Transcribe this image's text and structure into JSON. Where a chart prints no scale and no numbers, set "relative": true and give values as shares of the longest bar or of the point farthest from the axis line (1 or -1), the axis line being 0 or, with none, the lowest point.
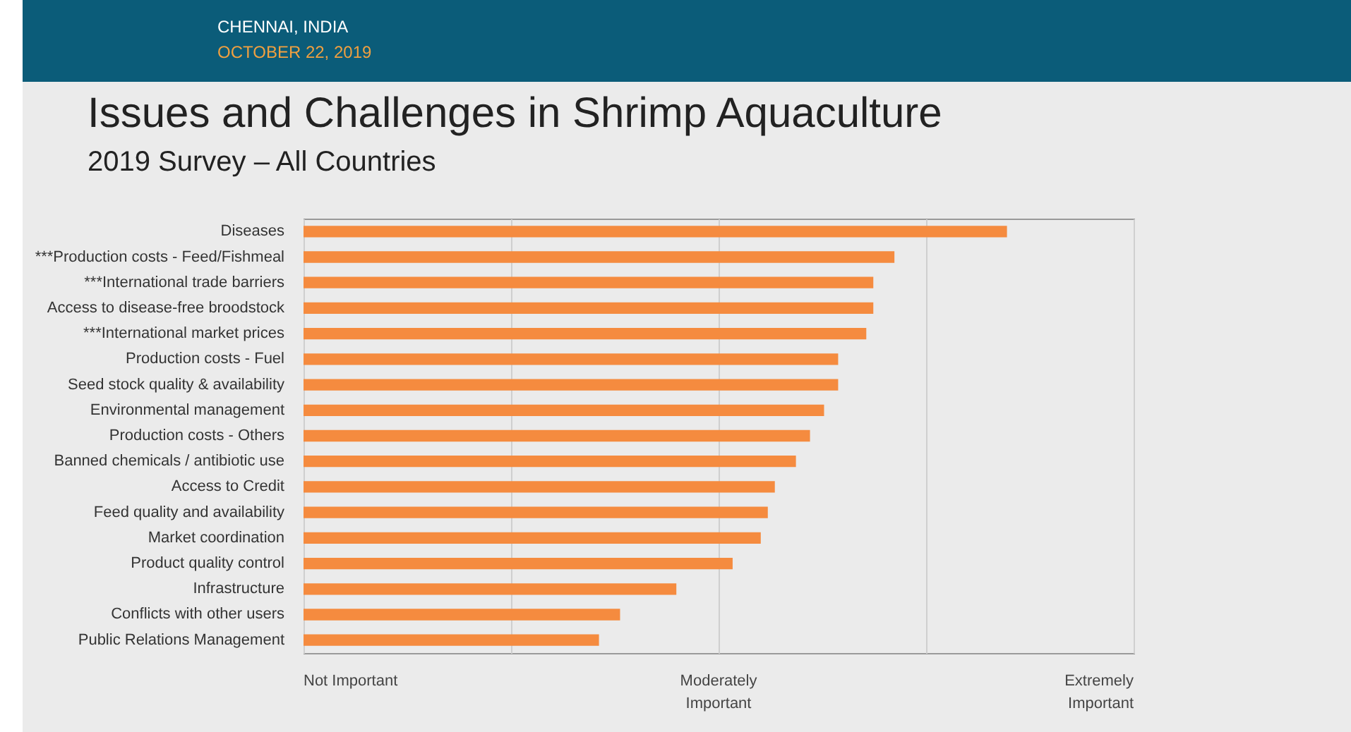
{
  "chart_data": {
    "type": "bar",
    "orientation": "horizontal",
    "relative": true,
    "title": "Issues and Challenges in Shrimp Aquaculture",
    "subtitle": "2019 Survey – All Countries",
    "annotations": [
      "CHENNAI, INDIA",
      "OCTOBER 22, 2019",
      "Not Important",
      "Moderately Important",
      "Extremely Important"
    ],
    "categories": [
      "Diseases",
      "***Production costs - Feed/Fishmeal",
      "***International trade barriers",
      "Access to disease-free broodstock",
      "***International market prices",
      "Production costs - Fuel",
      "Seed stock quality & availability",
      "Environmental management",
      "Production costs - Others",
      "Banned chemicals / antibiotic use",
      "Access to Credit",
      "Feed quality and availability",
      "Market coordination",
      "Product quality control",
      "Infrastructure",
      "Conflicts with other users",
      "Public Relations Management"
    ],
    "values": [
      1,
      0.84,
      0.81,
      0.81,
      0.8,
      0.76,
      0.76,
      0.74,
      0.72,
      0.7,
      0.67,
      0.66,
      0.65,
      0.61,
      0.53,
      0.45,
      0.42
    ],
    "color": "#f58b3f",
    "grid": "x"
  }
}
